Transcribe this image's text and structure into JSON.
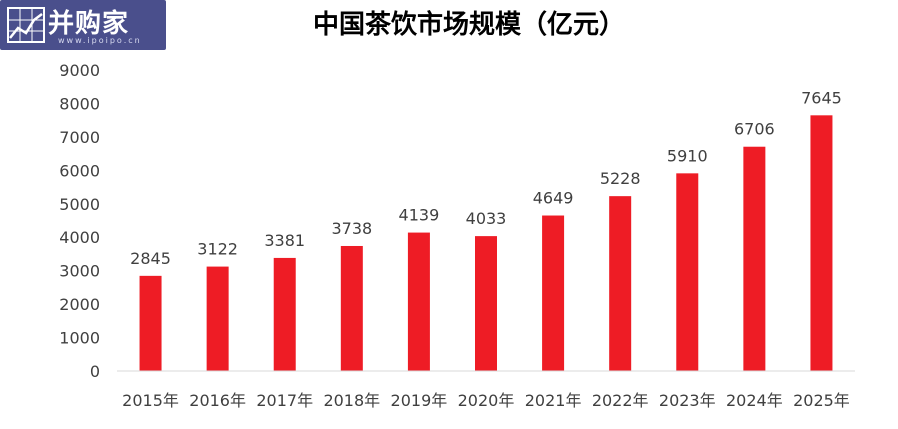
{
  "logo": {
    "name": "并购家",
    "url": "www.ipoipo.cn"
  },
  "colors": {
    "bar": "#ee1c25",
    "axis": "#d9d9d9",
    "logo_bg": "#4a4f8c"
  },
  "chart_data": {
    "type": "bar",
    "title": "中国茶饮市场规模（亿元）",
    "xlabel": "",
    "ylabel": "",
    "categories": [
      "2015年",
      "2016年",
      "2017年",
      "2018年",
      "2019年",
      "2020年",
      "2021年",
      "2022年",
      "2023年",
      "2024年",
      "2025年"
    ],
    "values": [
      2845,
      3122,
      3381,
      3738,
      4139,
      4033,
      4649,
      5228,
      5910,
      6706,
      7645
    ],
    "ylim": [
      0,
      9000
    ],
    "yticks": [
      0,
      1000,
      2000,
      3000,
      4000,
      5000,
      6000,
      7000,
      8000,
      9000
    ],
    "grid": false,
    "legend": "none"
  }
}
